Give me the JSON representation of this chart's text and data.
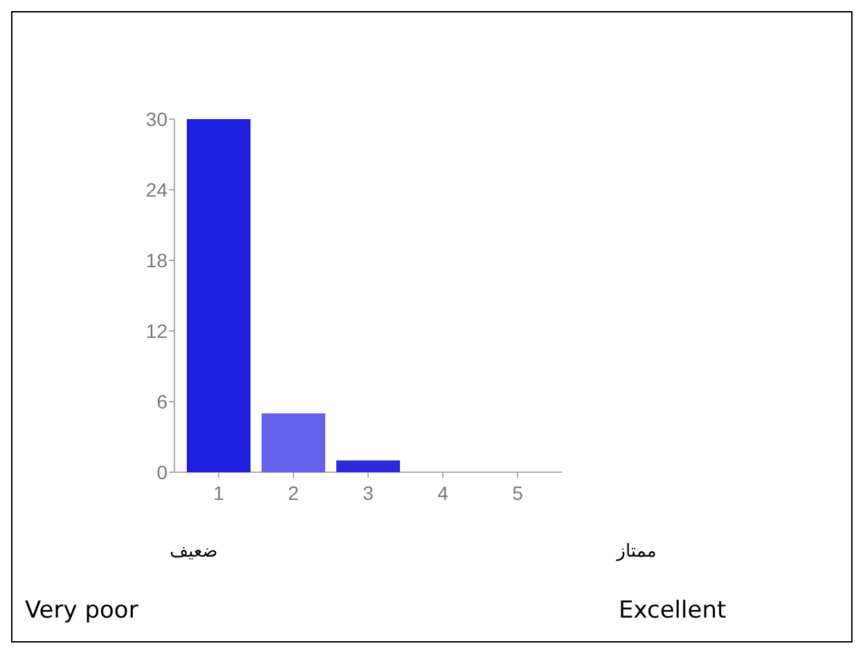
{
  "chart_data": {
    "type": "bar",
    "categories": [
      "1",
      "2",
      "3",
      "4",
      "5"
    ],
    "values": [
      30,
      5,
      1,
      0,
      0
    ],
    "colors": [
      "#1e1ee0",
      "#6262ea",
      "#2a2adc",
      "#2a2adc",
      "#2a2adc"
    ],
    "ylim": [
      0,
      30
    ],
    "yticks": [
      0,
      6,
      12,
      18,
      24,
      30
    ],
    "grid": false,
    "annotations": [
      "ضعيف",
      "ممتاز",
      "Very poor",
      "Excellent"
    ]
  }
}
